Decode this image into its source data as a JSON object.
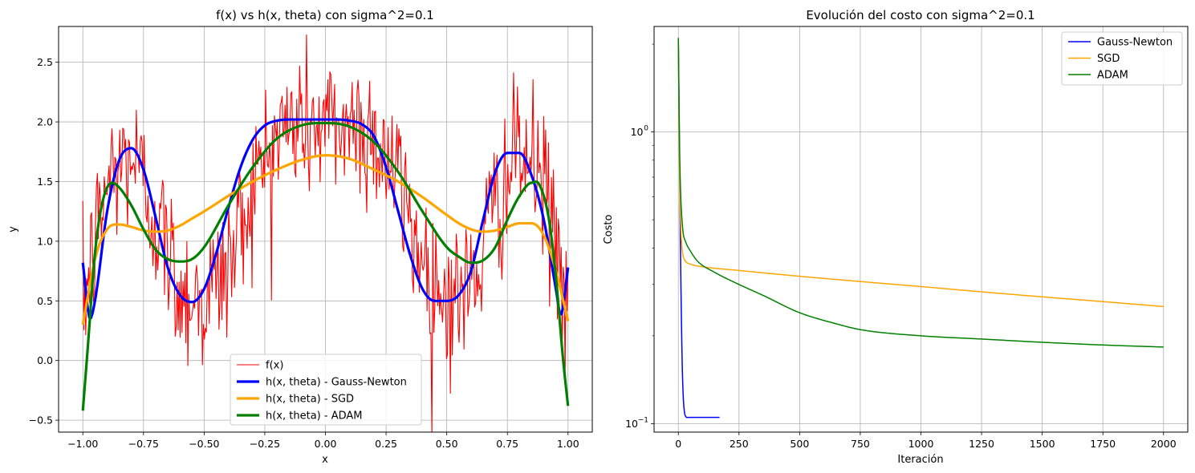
{
  "chart_data": [
    {
      "type": "line",
      "title": "f(x) vs h(x, theta) con sigma^2=0.1",
      "xlabel": "x",
      "ylabel": "y",
      "xlim": [
        -1.1,
        1.1
      ],
      "ylim": [
        -0.6,
        2.8
      ],
      "grid": true,
      "legend_position": "lower center",
      "x_ticks": [
        -1.0,
        -0.75,
        -0.5,
        -0.25,
        0.0,
        0.25,
        0.5,
        0.75,
        1.0
      ],
      "x_tick_labels": [
        "−1.00",
        "−0.75",
        "−0.50",
        "−0.25",
        "0.00",
        "0.25",
        "0.50",
        "0.75",
        "1.00"
      ],
      "y_ticks": [
        -0.5,
        0.0,
        0.5,
        1.0,
        1.5,
        2.0,
        2.5
      ],
      "y_tick_labels": [
        "−0.5",
        "0.0",
        "0.5",
        "1.0",
        "1.5",
        "2.0",
        "2.5"
      ],
      "series": [
        {
          "name": "f(x)",
          "color": "#ff0000",
          "kind": "noisy",
          "noise_std": 0.32,
          "x": [
            -1.0,
            -0.9,
            -0.8,
            -0.7,
            -0.6,
            -0.5,
            -0.4,
            -0.3,
            -0.2,
            -0.1,
            0.0,
            0.1,
            0.2,
            0.3,
            0.4,
            0.5,
            0.6,
            0.7,
            0.8,
            0.9,
            1.0
          ],
          "y": [
            0.45,
            1.5,
            1.75,
            1.2,
            0.6,
            0.5,
            0.8,
            1.45,
            1.9,
            2.0,
            1.95,
            2.0,
            1.9,
            1.5,
            0.85,
            0.5,
            0.6,
            1.3,
            1.75,
            1.5,
            0.45
          ]
        },
        {
          "name": "h(x, theta) - Gauss-Newton",
          "color": "#0000ff",
          "x": [
            -1.0,
            -0.97,
            -0.95,
            -0.9,
            -0.85,
            -0.8,
            -0.75,
            -0.7,
            -0.65,
            -0.6,
            -0.55,
            -0.5,
            -0.45,
            -0.4,
            -0.35,
            -0.3,
            -0.25,
            -0.2,
            -0.15,
            -0.1,
            -0.05,
            0.0,
            0.05,
            0.1,
            0.15,
            0.2,
            0.25,
            0.3,
            0.35,
            0.4,
            0.45,
            0.5,
            0.55,
            0.6,
            0.65,
            0.7,
            0.75,
            0.8,
            0.85,
            0.9,
            0.95,
            0.97,
            1.0
          ],
          "y": [
            0.82,
            0.35,
            0.5,
            1.25,
            1.68,
            1.78,
            1.6,
            1.2,
            0.78,
            0.55,
            0.49,
            0.6,
            0.9,
            1.28,
            1.62,
            1.85,
            1.97,
            2.01,
            2.02,
            2.02,
            2.02,
            2.02,
            2.02,
            2.01,
            1.98,
            1.88,
            1.62,
            1.25,
            0.88,
            0.6,
            0.5,
            0.5,
            0.55,
            0.75,
            1.18,
            1.58,
            1.74,
            1.74,
            1.55,
            1.18,
            0.6,
            0.38,
            0.78
          ]
        },
        {
          "name": "h(x, theta) - SGD",
          "color": "#ffa500",
          "x": [
            -1.0,
            -0.95,
            -0.9,
            -0.85,
            -0.8,
            -0.75,
            -0.7,
            -0.65,
            -0.6,
            -0.55,
            -0.5,
            -0.4,
            -0.3,
            -0.2,
            -0.1,
            0.0,
            0.1,
            0.2,
            0.3,
            0.4,
            0.5,
            0.55,
            0.6,
            0.65,
            0.7,
            0.75,
            0.8,
            0.85,
            0.9,
            0.95,
            1.0
          ],
          "y": [
            0.3,
            0.85,
            1.1,
            1.14,
            1.12,
            1.09,
            1.08,
            1.09,
            1.13,
            1.19,
            1.25,
            1.38,
            1.5,
            1.6,
            1.68,
            1.72,
            1.69,
            1.6,
            1.5,
            1.37,
            1.22,
            1.15,
            1.1,
            1.08,
            1.09,
            1.12,
            1.15,
            1.15,
            1.05,
            0.75,
            0.33
          ]
        },
        {
          "name": "h(x, theta) - ADAM",
          "color": "#008000",
          "x": [
            -1.0,
            -0.98,
            -0.95,
            -0.92,
            -0.88,
            -0.85,
            -0.8,
            -0.75,
            -0.7,
            -0.65,
            -0.6,
            -0.55,
            -0.5,
            -0.4,
            -0.3,
            -0.2,
            -0.1,
            0.0,
            0.1,
            0.2,
            0.3,
            0.4,
            0.5,
            0.55,
            0.6,
            0.65,
            0.7,
            0.75,
            0.8,
            0.85,
            0.88,
            0.92,
            0.95,
            0.98,
            1.0
          ],
          "y": [
            -0.42,
            0.1,
            0.9,
            1.32,
            1.49,
            1.45,
            1.3,
            1.1,
            0.93,
            0.85,
            0.83,
            0.85,
            0.95,
            1.3,
            1.62,
            1.86,
            1.97,
            1.99,
            1.96,
            1.83,
            1.58,
            1.25,
            0.95,
            0.87,
            0.82,
            0.84,
            0.95,
            1.18,
            1.38,
            1.49,
            1.48,
            1.2,
            0.7,
            0.0,
            -0.38
          ]
        }
      ]
    },
    {
      "type": "line",
      "title": "Evolución del costo con sigma^2=0.1",
      "xlabel": "Iteración",
      "ylabel": "Costo",
      "xlim": [
        -100,
        2100
      ],
      "ylim": [
        0.0935,
        2.3
      ],
      "y_scale": "log",
      "grid": true,
      "legend_position": "upper right",
      "x_ticks": [
        0,
        250,
        500,
        750,
        1000,
        1250,
        1500,
        1750,
        2000
      ],
      "x_tick_labels": [
        "0",
        "250",
        "500",
        "750",
        "1000",
        "1250",
        "1500",
        "1750",
        "2000"
      ],
      "y_major_ticks": [
        0.1,
        1.0
      ],
      "y_major_tick_labels": [
        "10",
        "10"
      ],
      "y_major_tick_exponents": [
        "−1",
        "0"
      ],
      "series": [
        {
          "name": "Gauss-Newton",
          "color": "#0000ff",
          "x": [
            0,
            2,
            5,
            8,
            12,
            16,
            20,
            25,
            30,
            40,
            60,
            100,
            170
          ],
          "y": [
            2.1,
            1.5,
            0.8,
            0.45,
            0.25,
            0.16,
            0.125,
            0.11,
            0.106,
            0.105,
            0.105,
            0.105,
            0.105
          ]
        },
        {
          "name": "SGD",
          "color": "#ffa500",
          "x": [
            0,
            3,
            6,
            10,
            15,
            20,
            30,
            50,
            100,
            250,
            500,
            750,
            1000,
            1250,
            1500,
            1750,
            2000
          ],
          "y": [
            2.1,
            1.0,
            0.65,
            0.48,
            0.4,
            0.375,
            0.36,
            0.352,
            0.345,
            0.335,
            0.32,
            0.307,
            0.295,
            0.283,
            0.272,
            0.262,
            0.252
          ]
        },
        {
          "name": "ADAM",
          "color": "#008000",
          "x": [
            0,
            3,
            6,
            10,
            15,
            20,
            30,
            50,
            80,
            150,
            250,
            350,
            500,
            650,
            750,
            1000,
            1250,
            1500,
            1750,
            2000
          ],
          "y": [
            2.1,
            1.2,
            0.8,
            0.6,
            0.5,
            0.45,
            0.42,
            0.39,
            0.36,
            0.33,
            0.3,
            0.275,
            0.24,
            0.22,
            0.21,
            0.2,
            0.195,
            0.19,
            0.186,
            0.183
          ]
        }
      ]
    }
  ]
}
